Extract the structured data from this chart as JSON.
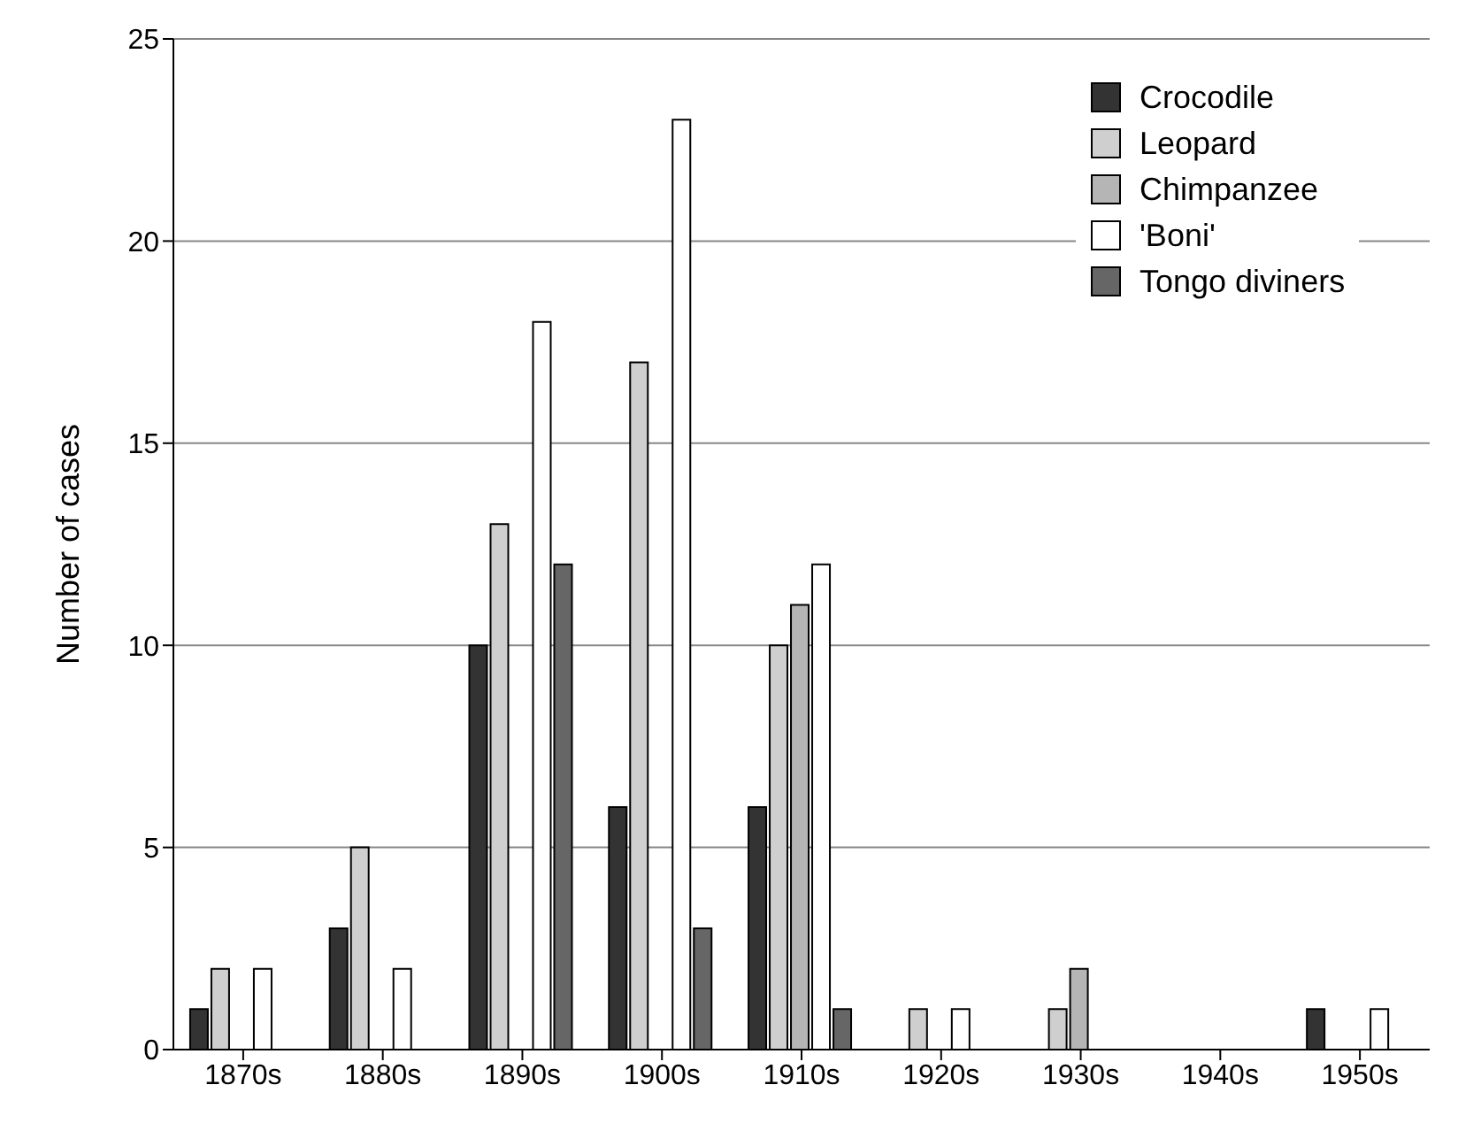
{
  "chart_data": {
    "type": "bar",
    "ylabel": "Number of cases",
    "categories": [
      "1870s",
      "1880s",
      "1890s",
      "1900s",
      "1910s",
      "1920s",
      "1930s",
      "1940s",
      "1950s"
    ],
    "series": [
      {
        "name": "Crocodile",
        "color": "#333333",
        "values": [
          1,
          3,
          10,
          6,
          6,
          0,
          0,
          0,
          1
        ]
      },
      {
        "name": "Leopard",
        "color": "#cfcfcf",
        "values": [
          2,
          5,
          13,
          17,
          10,
          1,
          1,
          0,
          0
        ]
      },
      {
        "name": "Chimpanzee",
        "color": "#b5b5b5",
        "values": [
          0,
          0,
          0,
          0,
          11,
          0,
          2,
          0,
          0
        ]
      },
      {
        "name": "'Boni'",
        "color": "#ffffff",
        "values": [
          2,
          2,
          18,
          23,
          12,
          1,
          0,
          0,
          1
        ]
      },
      {
        "name": "Tongo diviners",
        "color": "#666666",
        "values": [
          0,
          0,
          12,
          3,
          1,
          0,
          0,
          0,
          0
        ]
      }
    ],
    "ylim": [
      0,
      25
    ],
    "yticks": [
      0,
      5,
      10,
      15,
      20,
      25
    ],
    "grid": "y",
    "legend": "top right"
  }
}
